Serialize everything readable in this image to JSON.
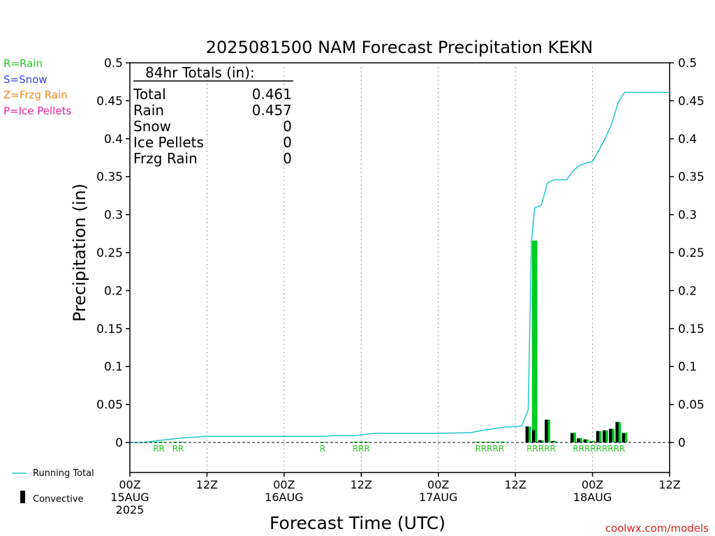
{
  "domain_note": "",
  "title": "2025081500 NAM Forecast Precipitation KEKN",
  "credit": "coolwx.com/models",
  "legend_types": [
    {
      "label": "R=Rain",
      "color": "#22cc22"
    },
    {
      "label": "S=Snow",
      "color": "#3344ee"
    },
    {
      "label": "Z=Frzg Rain",
      "color": "#ee8822"
    },
    {
      "label": "P=Ice Pellets",
      "color": "#ee2299"
    }
  ],
  "legend_series": {
    "running_total": "Running Total",
    "convective": "Convective"
  },
  "totals": {
    "heading": "84hr Totals (in):",
    "rows": [
      {
        "label": "Total",
        "value": "0.461"
      },
      {
        "label": "Rain",
        "value": "0.457"
      },
      {
        "label": "Snow",
        "value": "0"
      },
      {
        "label": "Ice Pellets",
        "value": "0"
      },
      {
        "label": "Frzg Rain",
        "value": "0"
      }
    ]
  },
  "chart_data": {
    "type": "bar",
    "title": "2025081500 NAM Forecast Precipitation KEKN",
    "xlabel": "Forecast Time (UTC)",
    "ylabel": "Precipitation (in)",
    "ylim": [
      0,
      0.5
    ],
    "xlim_hours": [
      0,
      84
    ],
    "yticks": [
      "0",
      "0.05",
      "0.1",
      "0.15",
      "0.2",
      "0.25",
      "0.3",
      "0.35",
      "0.4",
      "0.45",
      "0.5"
    ],
    "xticks": [
      {
        "hour": 0,
        "lines": [
          "00Z",
          "15AUG",
          "2025"
        ]
      },
      {
        "hour": 12,
        "lines": [
          "12Z"
        ]
      },
      {
        "hour": 24,
        "lines": [
          "00Z",
          "16AUG"
        ]
      },
      {
        "hour": 36,
        "lines": [
          "12Z"
        ]
      },
      {
        "hour": 48,
        "lines": [
          "00Z",
          "17AUG"
        ]
      },
      {
        "hour": 60,
        "lines": [
          "12Z"
        ]
      },
      {
        "hour": 72,
        "lines": [
          "00Z",
          "18AUG"
        ]
      },
      {
        "hour": 84,
        "lines": [
          "12Z"
        ]
      }
    ],
    "grid": "vertical dotted at each 12h",
    "bars": [
      {
        "hour": 4,
        "total": 0.0005,
        "convective": 0
      },
      {
        "hour": 5,
        "total": 0.0005,
        "convective": 0
      },
      {
        "hour": 7,
        "total": 0.0005,
        "convective": 0
      },
      {
        "hour": 8,
        "total": 0.0005,
        "convective": 0
      },
      {
        "hour": 30,
        "total": 0.0005,
        "convective": 0
      },
      {
        "hour": 35,
        "total": 0.0005,
        "convective": 0
      },
      {
        "hour": 36,
        "total": 0.0005,
        "convective": 0
      },
      {
        "hour": 37,
        "total": 0.0005,
        "convective": 0
      },
      {
        "hour": 54,
        "total": 0.001,
        "convective": 0
      },
      {
        "hour": 55,
        "total": 0.001,
        "convective": 0
      },
      {
        "hour": 56,
        "total": 0.001,
        "convective": 0
      },
      {
        "hour": 57,
        "total": 0.001,
        "convective": 0
      },
      {
        "hour": 58,
        "total": 0.001,
        "convective": 0
      },
      {
        "hour": 62,
        "total": 0.021,
        "convective": 0.021
      },
      {
        "hour": 63,
        "total": 0.266,
        "convective": 0.016
      },
      {
        "hour": 64,
        "total": 0.003,
        "convective": 0.003
      },
      {
        "hour": 65,
        "total": 0.03,
        "convective": 0.03
      },
      {
        "hour": 66,
        "total": 0.002,
        "convective": 0.002
      },
      {
        "hour": 69,
        "total": 0.013,
        "convective": 0.012
      },
      {
        "hour": 70,
        "total": 0.006,
        "convective": 0.005
      },
      {
        "hour": 71,
        "total": 0.004,
        "convective": 0.004
      },
      {
        "hour": 72,
        "total": 0.002,
        "convective": 0.001
      },
      {
        "hour": 73,
        "total": 0.015,
        "convective": 0.015
      },
      {
        "hour": 74,
        "total": 0.016,
        "convective": 0.016
      },
      {
        "hour": 75,
        "total": 0.018,
        "convective": 0.018
      },
      {
        "hour": 76,
        "total": 0.027,
        "convective": 0.027
      },
      {
        "hour": 77,
        "total": 0.013,
        "convective": 0.012
      }
    ],
    "running_total": {
      "name": "Running Total",
      "points": [
        [
          0,
          0
        ],
        [
          2,
          0
        ],
        [
          4,
          0.002
        ],
        [
          6,
          0.004
        ],
        [
          8,
          0.006
        ],
        [
          10,
          0.007
        ],
        [
          12,
          0.008
        ],
        [
          18,
          0.008
        ],
        [
          24,
          0.008
        ],
        [
          30,
          0.008
        ],
        [
          32,
          0.009
        ],
        [
          35,
          0.009
        ],
        [
          37,
          0.011
        ],
        [
          38,
          0.012
        ],
        [
          44,
          0.012
        ],
        [
          48,
          0.012
        ],
        [
          53,
          0.013
        ],
        [
          55,
          0.016
        ],
        [
          58,
          0.02
        ],
        [
          60,
          0.021
        ],
        [
          61,
          0.022
        ],
        [
          62,
          0.043
        ],
        [
          62.5,
          0.265
        ],
        [
          63,
          0.309
        ],
        [
          64,
          0.312
        ],
        [
          65,
          0.342
        ],
        [
          66,
          0.346
        ],
        [
          68,
          0.346
        ],
        [
          69,
          0.358
        ],
        [
          70,
          0.365
        ],
        [
          71,
          0.368
        ],
        [
          72,
          0.37
        ],
        [
          73,
          0.385
        ],
        [
          74,
          0.401
        ],
        [
          75,
          0.42
        ],
        [
          76,
          0.448
        ],
        [
          77,
          0.461
        ],
        [
          84,
          0.461
        ]
      ]
    },
    "ptype_labels": [
      {
        "hour": 4.5,
        "text": "RR"
      },
      {
        "hour": 7.5,
        "text": "RR"
      },
      {
        "hour": 30,
        "text": "R"
      },
      {
        "hour": 36,
        "text": "RRR"
      },
      {
        "hour": 56,
        "text": "RRRRR"
      },
      {
        "hour": 64,
        "text": "RRRRR"
      },
      {
        "hour": 73,
        "text": "RRRRRRRRR"
      }
    ],
    "colors": {
      "bar": "#00cc22",
      "convective": "#000000",
      "running_total": "#22c8cc",
      "rain_label": "#22cc22"
    }
  }
}
